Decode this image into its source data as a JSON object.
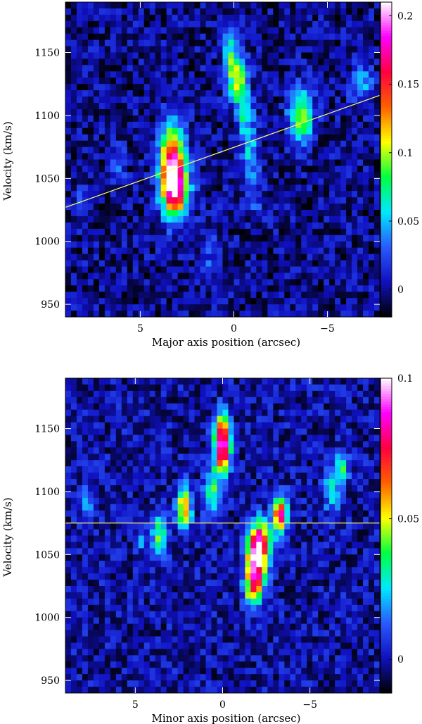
{
  "chart_data": [
    {
      "type": "heatmap",
      "title": "",
      "xlabel": "Major axis position (arcsec)",
      "ylabel": "Velocity (km/s)",
      "xlim": [
        9,
        -7.8
      ],
      "ylim": [
        940,
        1190
      ],
      "x_reversed": true,
      "x_ticks": [
        5,
        0,
        -5
      ],
      "x_tick_labels": [
        "5",
        "0",
        "−5"
      ],
      "y_ticks": [
        950,
        1000,
        1050,
        1100,
        1150
      ],
      "y_tick_labels": [
        "950",
        "1000",
        "1050",
        "1100",
        "1150"
      ],
      "colorbar": {
        "min": -0.02,
        "max": 0.21,
        "ticks": [
          0,
          0.05,
          0.1,
          0.15,
          0.2
        ],
        "tick_labels": [
          "0",
          "0.05",
          "0.1",
          "0.15",
          "0.2"
        ],
        "colormap": [
          "#000000",
          "#1010c0",
          "#2a5aff",
          "#00e8ff",
          "#00ff40",
          "#ffff00",
          "#ff6000",
          "#ff0040",
          "#ff00ff",
          "#ffffff"
        ]
      },
      "reference_line": {
        "color": "#ffff66",
        "points": [
          [
            9,
            1027
          ],
          [
            -7.8,
            1116
          ]
        ]
      },
      "features": [
        {
          "x": 3.3,
          "y": 1058,
          "peak": 0.2,
          "sx": 0.45,
          "sy": 22
        },
        {
          "x": 3.0,
          "y": 1040,
          "peak": 0.1,
          "sx": 0.5,
          "sy": 14
        },
        {
          "x": 0.2,
          "y": 1150,
          "peak": 0.06,
          "sx": 0.3,
          "sy": 15
        },
        {
          "x": -0.2,
          "y": 1128,
          "peak": 0.09,
          "sx": 0.35,
          "sy": 14
        },
        {
          "x": -0.6,
          "y": 1100,
          "peak": 0.06,
          "sx": 0.3,
          "sy": 14
        },
        {
          "x": -0.9,
          "y": 1068,
          "peak": 0.05,
          "sx": 0.3,
          "sy": 14
        },
        {
          "x": -1.1,
          "y": 1035,
          "peak": 0.03,
          "sx": 0.3,
          "sy": 12
        },
        {
          "x": -3.6,
          "y": 1100,
          "peak": 0.1,
          "sx": 0.45,
          "sy": 14
        },
        {
          "x": -6.8,
          "y": 1125,
          "peak": 0.05,
          "sx": 0.45,
          "sy": 9
        },
        {
          "x": 8.2,
          "y": 1030,
          "peak": 0.03,
          "sx": 0.3,
          "sy": 10
        },
        {
          "x": 6.2,
          "y": 1060,
          "peak": 0.03,
          "sx": 0.3,
          "sy": 10
        },
        {
          "x": 1.3,
          "y": 990,
          "peak": 0.025,
          "sx": 0.4,
          "sy": 15
        }
      ]
    },
    {
      "type": "heatmap",
      "title": "",
      "xlabel": "Minor axis position (arcsec)",
      "ylabel": "Velocity (km/s)",
      "xlim": [
        9,
        -9
      ],
      "ylim": [
        940,
        1190
      ],
      "x_reversed": true,
      "x_ticks": [
        5,
        0,
        -5
      ],
      "x_tick_labels": [
        "5",
        "0",
        "−5"
      ],
      "y_ticks": [
        950,
        1000,
        1050,
        1100,
        1150
      ],
      "y_tick_labels": [
        "950",
        "1000",
        "1050",
        "1100",
        "1150"
      ],
      "colorbar": {
        "min": -0.012,
        "max": 0.1,
        "ticks": [
          0,
          0.05,
          0.1
        ],
        "tick_labels": [
          "0",
          "0.05",
          "0.1"
        ],
        "colormap": [
          "#000000",
          "#1010c0",
          "#2a5aff",
          "#00e8ff",
          "#00ff40",
          "#ffff00",
          "#ff6000",
          "#ff0040",
          "#ff00ff",
          "#ffffff"
        ]
      },
      "reference_line": {
        "color": "#ffff66",
        "points": [
          [
            9,
            1075
          ],
          [
            -9,
            1075
          ]
        ]
      },
      "features": [
        {
          "x": 0.0,
          "y": 1133,
          "peak": 0.095,
          "sx": 0.3,
          "sy": 12
        },
        {
          "x": 0.1,
          "y": 1152,
          "peak": 0.04,
          "sx": 0.3,
          "sy": 10
        },
        {
          "x": 0.6,
          "y": 1100,
          "peak": 0.04,
          "sx": 0.3,
          "sy": 14
        },
        {
          "x": 2.2,
          "y": 1088,
          "peak": 0.065,
          "sx": 0.28,
          "sy": 12
        },
        {
          "x": 3.6,
          "y": 1065,
          "peak": 0.04,
          "sx": 0.3,
          "sy": 12
        },
        {
          "x": -1.9,
          "y": 1045,
          "peak": 0.1,
          "sx": 0.38,
          "sy": 17
        },
        {
          "x": -2.3,
          "y": 1062,
          "peak": 0.05,
          "sx": 0.4,
          "sy": 10
        },
        {
          "x": -3.3,
          "y": 1082,
          "peak": 0.08,
          "sx": 0.3,
          "sy": 10
        },
        {
          "x": -1.7,
          "y": 1020,
          "peak": 0.035,
          "sx": 0.35,
          "sy": 10
        },
        {
          "x": -6.8,
          "y": 1120,
          "peak": 0.035,
          "sx": 0.3,
          "sy": 8
        },
        {
          "x": -6.3,
          "y": 1100,
          "peak": 0.025,
          "sx": 0.4,
          "sy": 12
        },
        {
          "x": 7.8,
          "y": 1090,
          "peak": 0.02,
          "sx": 0.3,
          "sy": 10
        },
        {
          "x": 4.6,
          "y": 1062,
          "peak": 0.02,
          "sx": 0.25,
          "sy": 6
        }
      ]
    }
  ]
}
